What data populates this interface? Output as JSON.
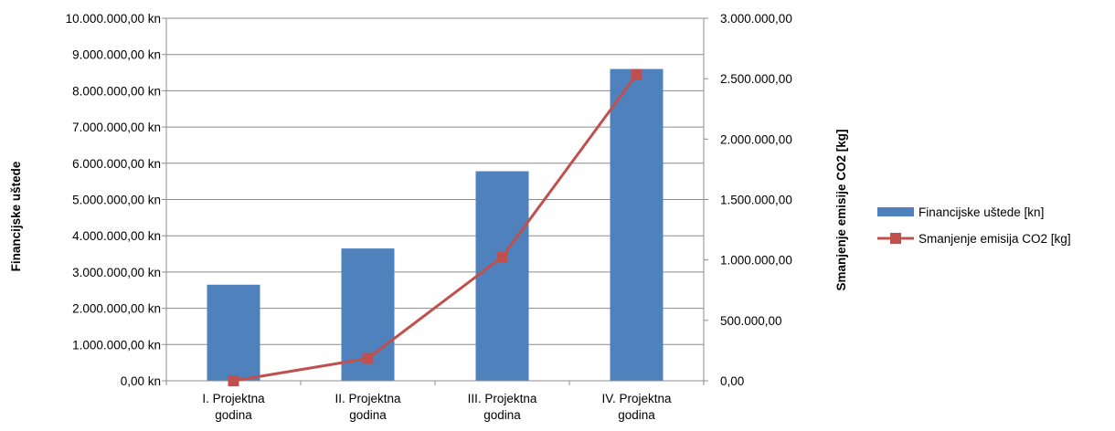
{
  "chart_data": {
    "type": "bar",
    "categories": [
      [
        "I. Projektna",
        "godina"
      ],
      [
        "II. Projektna",
        "godina"
      ],
      [
        "III. Projektna",
        "godina"
      ],
      [
        "IV. Projektna",
        "godina"
      ]
    ],
    "series": [
      {
        "name": "Financijske uštede [kn]",
        "type": "bar",
        "axis": "left",
        "color": "#4f81bd",
        "values": [
          2650000,
          3650000,
          5780000,
          8600000
        ]
      },
      {
        "name": "Smanjenje emisija CO2 [kg]",
        "type": "line",
        "axis": "right",
        "color": "#c0504d",
        "values": [
          0,
          185000,
          1025000,
          2535000
        ]
      }
    ],
    "y_left": {
      "label": "Financijske uštede",
      "ylim": [
        0,
        10000000
      ],
      "ticks": [
        "0,00 kn",
        "1.000.000,00 kn",
        "2.000.000,00 kn",
        "3.000.000,00 kn",
        "4.000.000,00 kn",
        "5.000.000,00 kn",
        "6.000.000,00 kn",
        "7.000.000,00 kn",
        "8.000.000,00 kn",
        "9.000.000,00 kn",
        "10.000.000,00 kn"
      ]
    },
    "y_right": {
      "label": "Smanjenje emisije CO2 [kg]",
      "ylim": [
        0,
        3000000
      ],
      "ticks": [
        "0,00",
        "500.000,00",
        "1.000.000,00",
        "1.500.000,00",
        "2.000.000,00",
        "2.500.000,00",
        "3.000.000,00"
      ]
    },
    "grid": true,
    "legend": "right"
  }
}
